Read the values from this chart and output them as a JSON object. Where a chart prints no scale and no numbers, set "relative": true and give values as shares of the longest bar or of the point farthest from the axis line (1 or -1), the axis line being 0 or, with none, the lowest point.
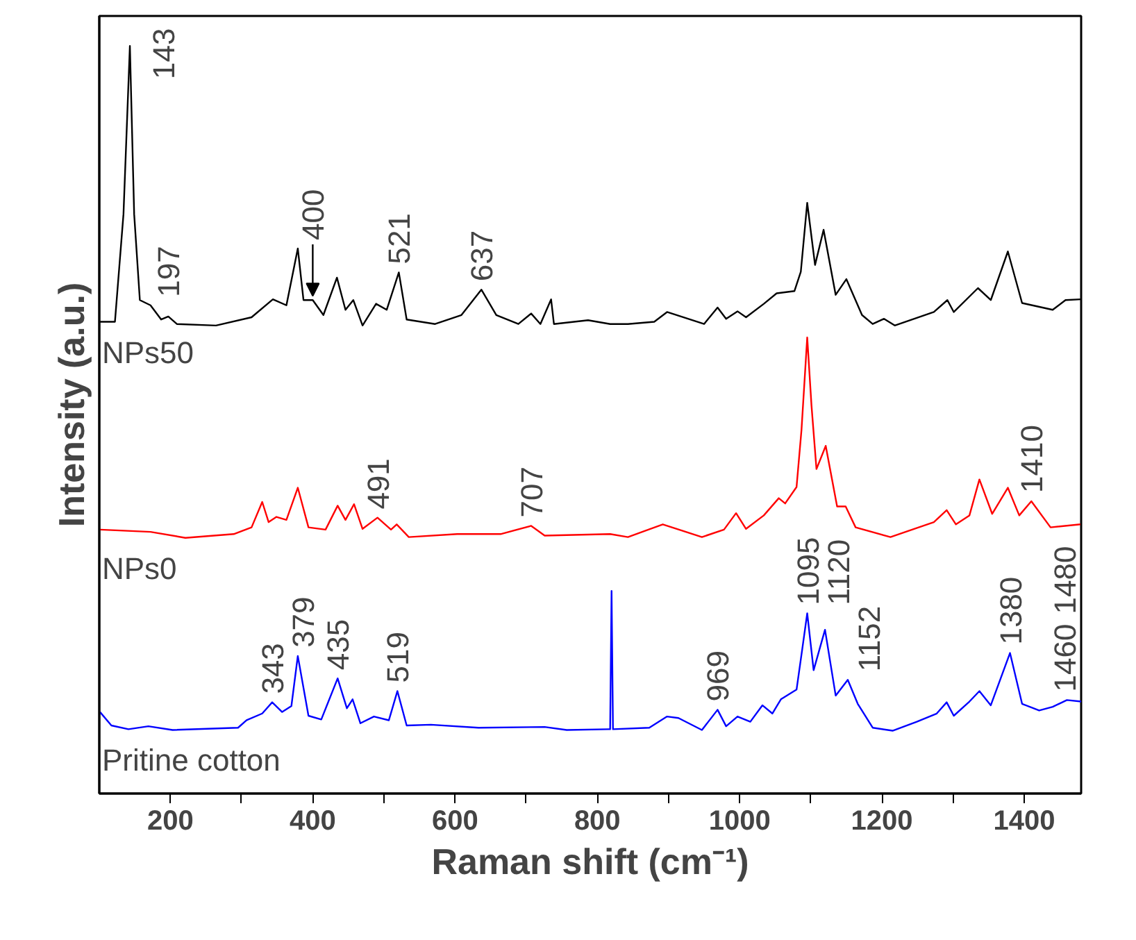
{
  "chart_data": {
    "type": "line",
    "relative": true,
    "xlabel": "Raman shift (cm⁻¹)",
    "ylabel": "Intensity (a.u.)",
    "xlim": [
      100,
      1480
    ],
    "xticks": [
      200,
      {
        "value": 300,
        "label": null
      },
      400,
      {
        "value": 500,
        "label": null
      },
      600,
      {
        "value": 700,
        "label": null
      },
      800,
      {
        "value": 900,
        "label": null
      },
      1000,
      {
        "value": 1100,
        "label": null
      },
      1200,
      {
        "value": 1300,
        "label": null
      },
      1400
    ],
    "tick_labels": "x",
    "grid": false,
    "marker": "none",
    "line_style": "solid",
    "series": [
      {
        "name": "NPs50",
        "color": "#000000",
        "x": [
          101,
          122,
          134,
          143,
          149,
          157,
          172,
          187,
          197,
          209,
          264,
          314,
          344,
          363,
          379,
          387,
          400,
          415,
          434,
          446,
          457,
          470,
          489,
          504,
          521,
          532,
          572,
          609,
          637,
          658,
          689,
          707,
          720,
          735,
          739,
          787,
          818,
          843,
          880,
          898,
          950,
          969,
          981,
          997,
          1009,
          1034,
          1052,
          1077,
          1086,
          1095,
          1106,
          1118,
          1135,
          1150,
          1172,
          1187,
          1203,
          1218,
          1273,
          1292,
          1301,
          1335,
          1353,
          1377,
          1397,
          1440,
          1458,
          1479
        ],
        "values": [
          0.631,
          0.631,
          0.775,
          1.0,
          0.775,
          0.66,
          0.653,
          0.634,
          0.638,
          0.628,
          0.626,
          0.637,
          0.661,
          0.653,
          0.729,
          0.66,
          0.66,
          0.64,
          0.69,
          0.647,
          0.66,
          0.626,
          0.655,
          0.647,
          0.697,
          0.634,
          0.628,
          0.64,
          0.674,
          0.64,
          0.628,
          0.642,
          0.628,
          0.661,
          0.628,
          0.633,
          0.628,
          0.628,
          0.631,
          0.644,
          0.628,
          0.65,
          0.635,
          0.645,
          0.637,
          0.655,
          0.669,
          0.672,
          0.698,
          0.79,
          0.707,
          0.754,
          0.667,
          0.688,
          0.64,
          0.628,
          0.635,
          0.626,
          0.644,
          0.66,
          0.644,
          0.676,
          0.66,
          0.725,
          0.656,
          0.647,
          0.66,
          0.661
        ]
      },
      {
        "name": "NPs0",
        "color": "#ff0000",
        "x": [
          101,
          172,
          221,
          289,
          314,
          329,
          338,
          349,
          363,
          379,
          394,
          418,
          435,
          446,
          458,
          470,
          491,
          510,
          518,
          535,
          603,
          664,
          707,
          726,
          818,
          843,
          892,
          947,
          978,
          995,
          1009,
          1034,
          1055,
          1064,
          1080,
          1087,
          1095,
          1101,
          1108,
          1121,
          1137,
          1149,
          1163,
          1212,
          1273,
          1291,
          1304,
          1323,
          1337,
          1355,
          1377,
          1393,
          1410,
          1437,
          1479
        ],
        "values": [
          0.353,
          0.35,
          0.342,
          0.347,
          0.356,
          0.39,
          0.363,
          0.37,
          0.366,
          0.409,
          0.356,
          0.353,
          0.385,
          0.366,
          0.387,
          0.354,
          0.369,
          0.353,
          0.36,
          0.343,
          0.347,
          0.347,
          0.358,
          0.345,
          0.347,
          0.343,
          0.36,
          0.343,
          0.353,
          0.375,
          0.354,
          0.372,
          0.395,
          0.388,
          0.41,
          0.487,
          0.61,
          0.519,
          0.434,
          0.465,
          0.384,
          0.384,
          0.356,
          0.343,
          0.363,
          0.379,
          0.36,
          0.372,
          0.42,
          0.374,
          0.409,
          0.372,
          0.391,
          0.356,
          0.36
        ]
      },
      {
        "name": "Pritine cotton",
        "color": "#0000ff",
        "x": [
          101,
          117,
          141,
          169,
          203,
          295,
          307,
          329,
          343,
          357,
          370,
          379,
          394,
          412,
          435,
          448,
          456,
          467,
          486,
          507,
          519,
          532,
          566,
          633,
          726,
          757,
          815,
          818,
          820,
          822,
          873,
          898,
          914,
          947,
          969,
          981,
          997,
          1015,
          1032,
          1046,
          1058,
          1080,
          1088,
          1095,
          1104,
          1120,
          1135,
          1152,
          1166,
          1187,
          1215,
          1249,
          1277,
          1291,
          1301,
          1323,
          1337,
          1353,
          1380,
          1397,
          1421,
          1440,
          1460,
          1480
        ],
        "values": [
          0.109,
          0.091,
          0.086,
          0.09,
          0.085,
          0.088,
          0.098,
          0.107,
          0.122,
          0.109,
          0.117,
          0.184,
          0.104,
          0.099,
          0.154,
          0.114,
          0.126,
          0.094,
          0.103,
          0.098,
          0.137,
          0.091,
          0.092,
          0.088,
          0.089,
          0.085,
          0.086,
          0.086,
          0.271,
          0.086,
          0.088,
          0.103,
          0.101,
          0.085,
          0.112,
          0.09,
          0.103,
          0.096,
          0.118,
          0.107,
          0.126,
          0.139,
          0.193,
          0.241,
          0.165,
          0.219,
          0.131,
          0.152,
          0.12,
          0.088,
          0.084,
          0.096,
          0.107,
          0.122,
          0.104,
          0.123,
          0.137,
          0.118,
          0.188,
          0.12,
          0.111,
          0.116,
          0.125,
          0.123
        ]
      }
    ],
    "annotations": [
      {
        "text": "143",
        "x": 143,
        "y": 1.0
      },
      {
        "text": "197",
        "x": 197,
        "y": 0.638
      },
      {
        "text": "400",
        "x": 400,
        "y": 0.66
      },
      {
        "text": "521",
        "x": 521,
        "y": 0.697
      },
      {
        "text": "637",
        "x": 637,
        "y": 0.674
      },
      {
        "text": "491",
        "x": 491,
        "y": 0.369
      },
      {
        "text": "707",
        "x": 707,
        "y": 0.358
      },
      {
        "text": "1410",
        "x": 1410,
        "y": 0.391
      },
      {
        "text": "343",
        "x": 343,
        "y": 0.122
      },
      {
        "text": "379",
        "x": 379,
        "y": 0.184
      },
      {
        "text": "435",
        "x": 435,
        "y": 0.154
      },
      {
        "text": "519",
        "x": 519,
        "y": 0.137
      },
      {
        "text": "969",
        "x": 969,
        "y": 0.112
      },
      {
        "text": "1095",
        "x": 1095,
        "y": 0.241
      },
      {
        "text": "1120",
        "x": 1120,
        "y": 0.219
      },
      {
        "text": "1152",
        "x": 1152,
        "y": 0.152
      },
      {
        "text": "1380",
        "x": 1380,
        "y": 0.188
      },
      {
        "text": "1460",
        "x": 1460,
        "y": 0.125
      },
      {
        "text": "1480",
        "x": 1480,
        "y": 0.123
      }
    ]
  }
}
